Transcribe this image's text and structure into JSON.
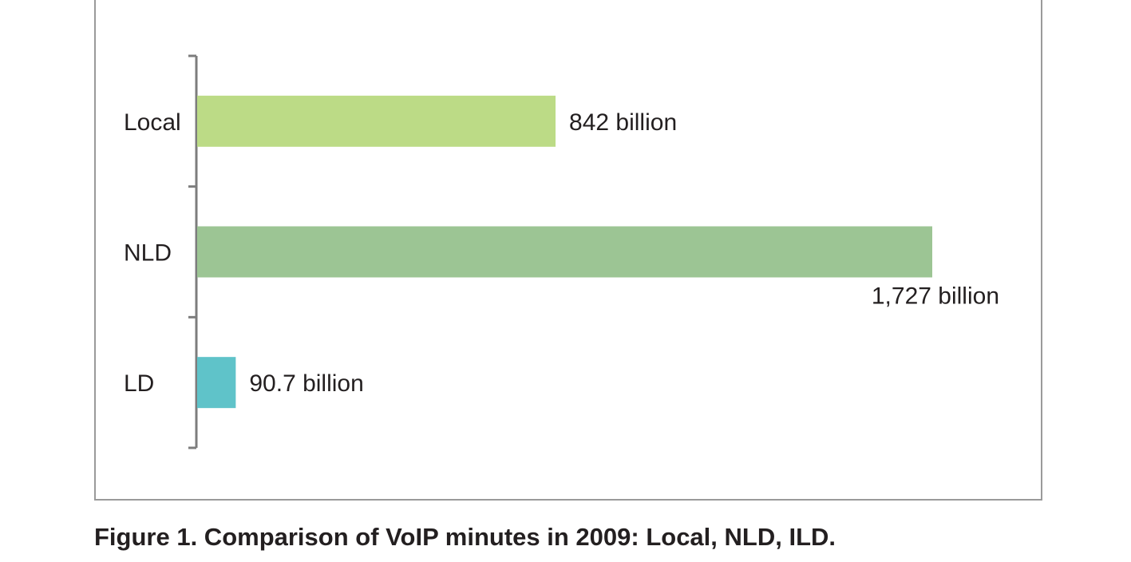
{
  "chart_data": {
    "type": "bar",
    "orientation": "horizontal",
    "categories": [
      "Local",
      "NLD",
      "LD"
    ],
    "values": [
      842,
      1727,
      90.7
    ],
    "value_labels": [
      "842 billion",
      "1,727 billion",
      "90.7 billion"
    ],
    "colors": [
      "#bcdb86",
      "#9cc594",
      "#5fc3c9"
    ],
    "title": "",
    "xlabel": "",
    "ylabel": "",
    "grid": false,
    "legend": "none"
  },
  "caption": "Figure 1. Comparison of VoIP minutes in 2009: Local, NLD, ILD."
}
